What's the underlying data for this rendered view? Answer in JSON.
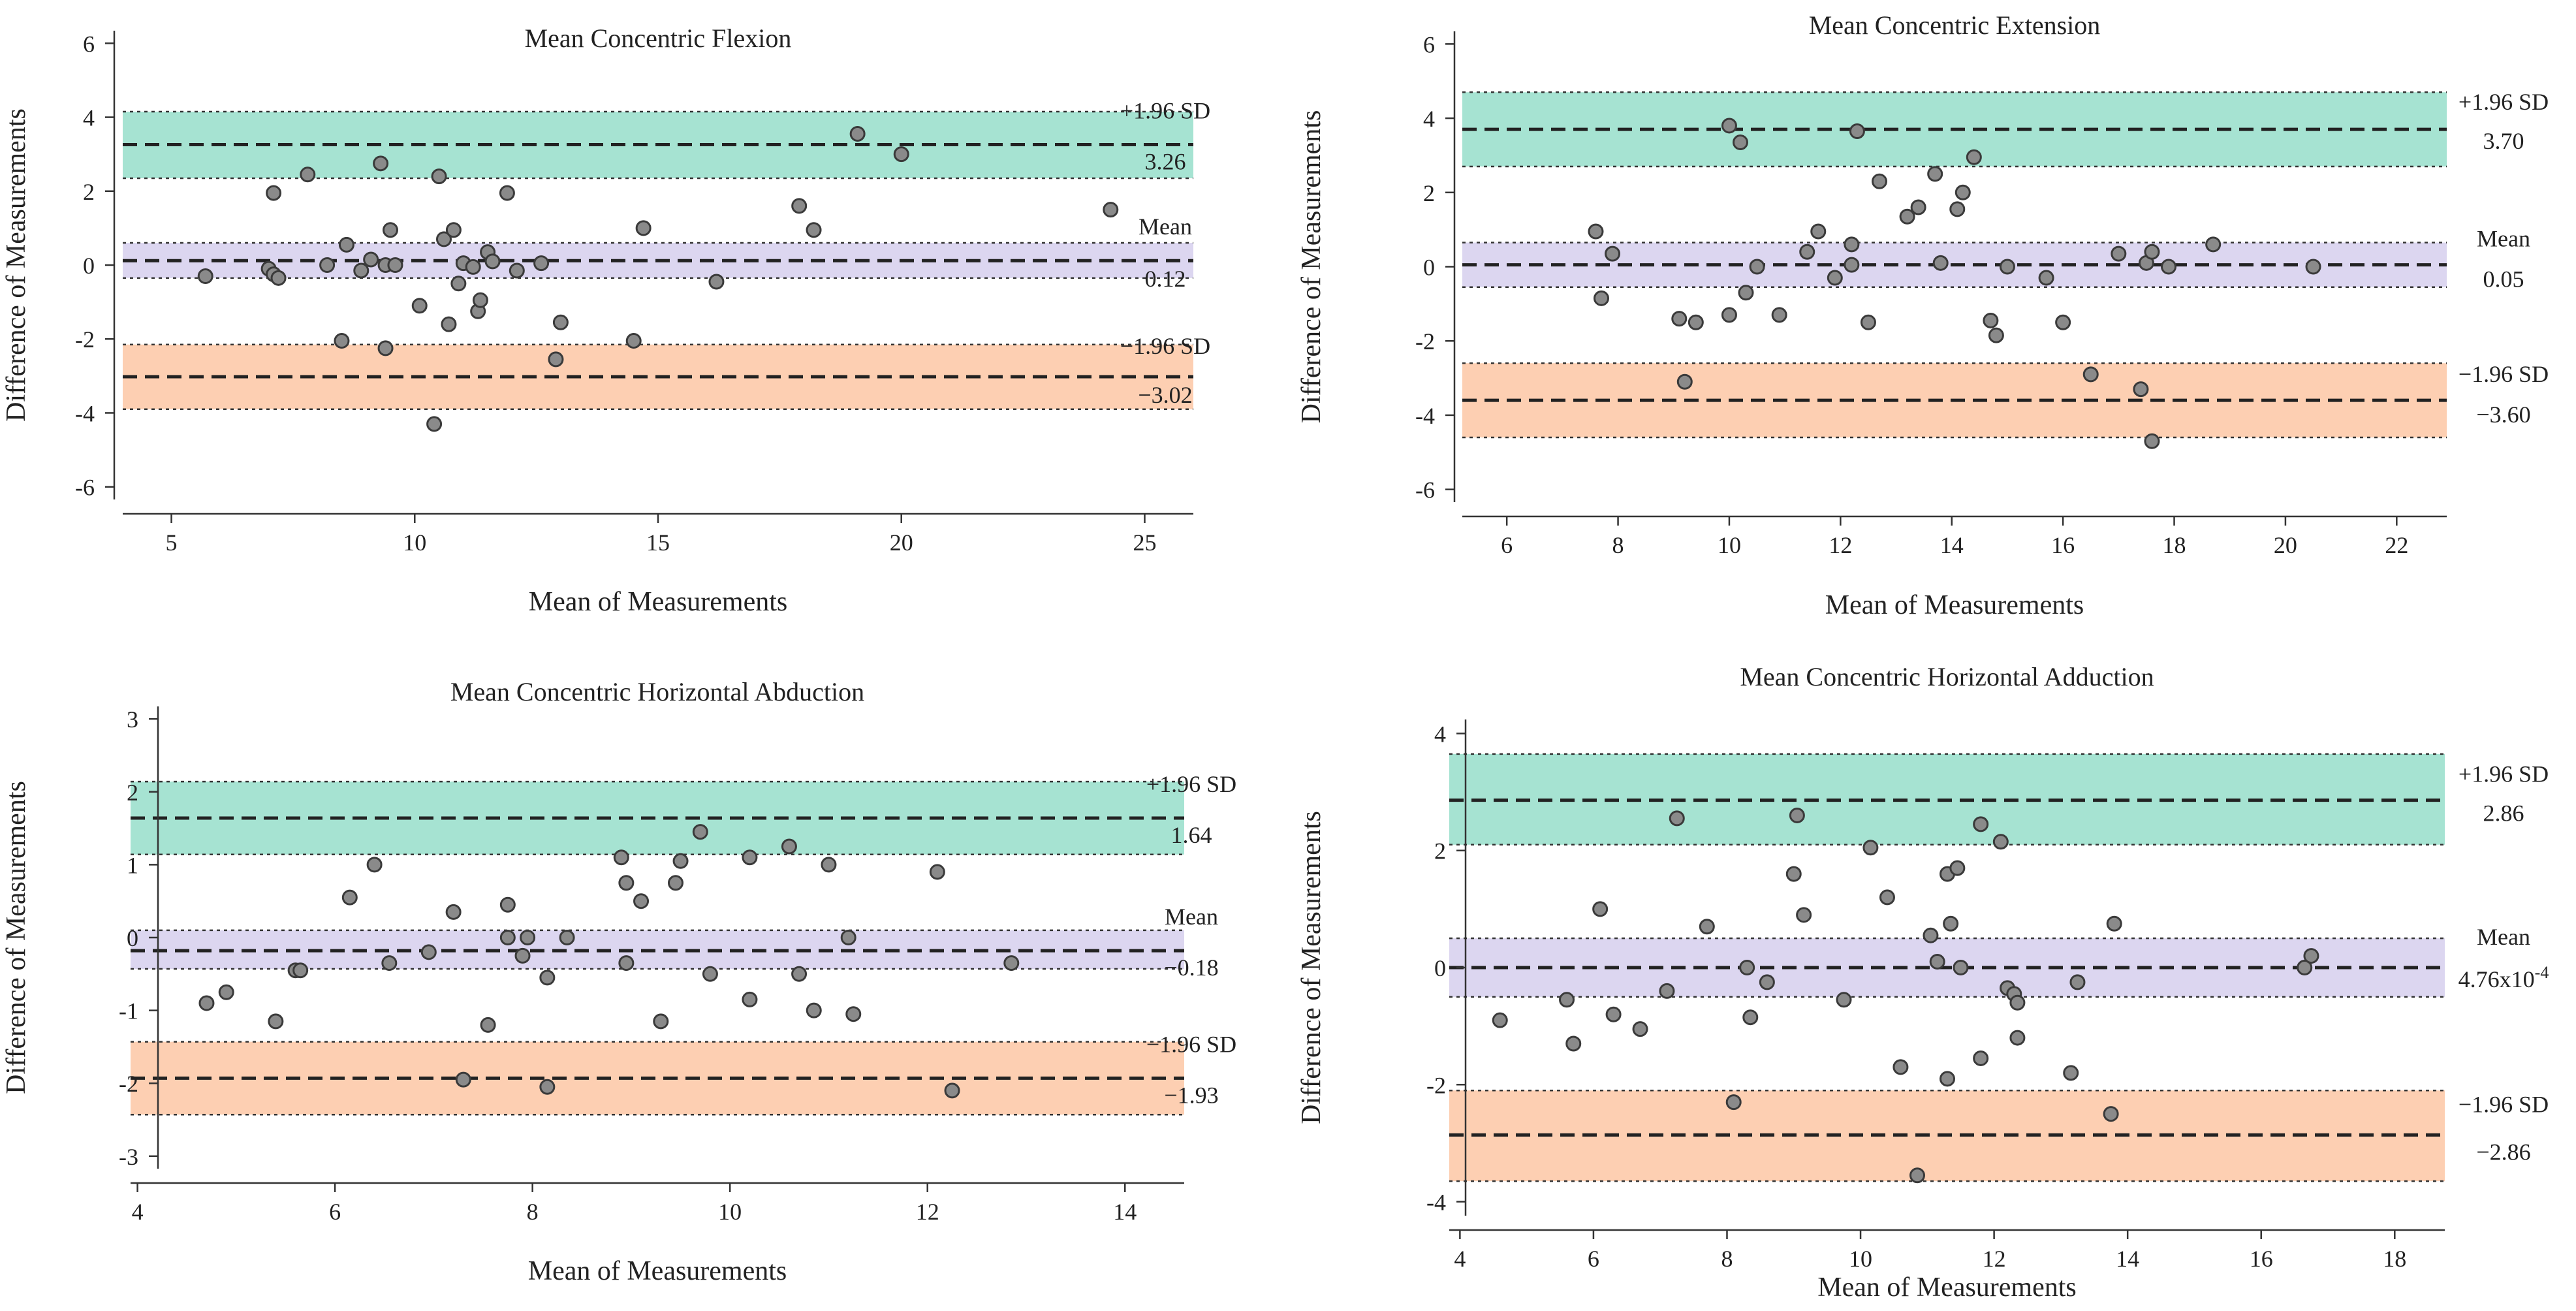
{
  "colors": {
    "upper_band": "#a6e3d2",
    "mean_band": "#dcd6f0",
    "lower_band": "#fdcfb2",
    "point_fill": "#8a8a8a",
    "point_stroke": "#3a3a3a",
    "line": "#222222"
  },
  "chart_data": [
    {
      "type": "scatter",
      "title": "Mean Concentric Flexion",
      "xlabel": "Mean of Measurements",
      "ylabel": "Difference of Measurements",
      "xlim": [
        4,
        26
      ],
      "ylim": [
        -6.2,
        6.2
      ],
      "xticks": [
        5,
        10,
        15,
        20,
        25
      ],
      "yticks": [
        6,
        4,
        2,
        0,
        -2,
        -4,
        -6
      ],
      "limits": {
        "upper": {
          "label": "+1.96 SD",
          "value": 3.26,
          "value_text": "3.26",
          "band": [
            2.35,
            4.15
          ]
        },
        "mean": {
          "label": "Mean",
          "value": 0.12,
          "value_text": "0.12",
          "band": [
            -0.35,
            0.6
          ]
        },
        "lower": {
          "label": "−1.96 SD",
          "value": -3.02,
          "value_text": "−3.02",
          "band": [
            -3.9,
            -2.15
          ]
        }
      },
      "points": [
        [
          5.7,
          -0.3
        ],
        [
          7.0,
          -0.1
        ],
        [
          7.1,
          1.95
        ],
        [
          7.1,
          -0.25
        ],
        [
          7.2,
          -0.35
        ],
        [
          7.8,
          2.45
        ],
        [
          8.2,
          0.0
        ],
        [
          8.5,
          -2.05
        ],
        [
          8.6,
          0.55
        ],
        [
          8.9,
          -0.15
        ],
        [
          9.1,
          0.15
        ],
        [
          9.3,
          2.75
        ],
        [
          9.4,
          0.0
        ],
        [
          9.4,
          -2.25
        ],
        [
          9.5,
          0.95
        ],
        [
          9.6,
          0.0
        ],
        [
          10.1,
          -1.1
        ],
        [
          10.4,
          -4.3
        ],
        [
          10.5,
          2.4
        ],
        [
          10.6,
          0.7
        ],
        [
          10.7,
          -1.6
        ],
        [
          10.8,
          0.95
        ],
        [
          10.9,
          -0.5
        ],
        [
          11.0,
          0.05
        ],
        [
          11.2,
          -0.05
        ],
        [
          11.3,
          -1.25
        ],
        [
          11.35,
          -0.95
        ],
        [
          11.5,
          0.35
        ],
        [
          11.6,
          0.1
        ],
        [
          11.9,
          1.95
        ],
        [
          12.1,
          -0.15
        ],
        [
          12.6,
          0.05
        ],
        [
          12.9,
          -2.55
        ],
        [
          13.0,
          -1.55
        ],
        [
          14.5,
          -2.05
        ],
        [
          14.7,
          1.0
        ],
        [
          16.2,
          -0.45
        ],
        [
          17.9,
          1.6
        ],
        [
          18.2,
          0.95
        ],
        [
          19.1,
          3.55
        ],
        [
          20.0,
          3.0
        ],
        [
          24.3,
          1.5
        ]
      ]
    },
    {
      "type": "scatter",
      "title": "Mean Concentric Extension",
      "xlabel": "Mean of Measurements",
      "ylabel": "Difference of Measurements",
      "xlim": [
        5.2,
        22.9
      ],
      "ylim": [
        -6.2,
        6.2
      ],
      "xticks": [
        6,
        8,
        10,
        12,
        14,
        16,
        18,
        20,
        22
      ],
      "yticks": [
        6,
        4,
        2,
        0,
        -2,
        -4,
        -6
      ],
      "limits": {
        "upper": {
          "label": "+1.96 SD",
          "value": 3.7,
          "value_text": "3.70",
          "band": [
            2.7,
            4.7
          ]
        },
        "mean": {
          "label": "Mean",
          "value": 0.05,
          "value_text": "0.05",
          "band": [
            -0.55,
            0.65
          ]
        },
        "lower": {
          "label": "−1.96 SD",
          "value": -3.6,
          "value_text": "−3.60",
          "band": [
            -4.6,
            -2.6
          ]
        }
      },
      "points": [
        [
          7.6,
          0.95
        ],
        [
          7.7,
          -0.85
        ],
        [
          7.9,
          0.35
        ],
        [
          9.1,
          -1.4
        ],
        [
          9.2,
          -3.1
        ],
        [
          9.4,
          -1.5
        ],
        [
          10.0,
          3.8
        ],
        [
          10.0,
          -1.3
        ],
        [
          10.2,
          3.35
        ],
        [
          10.3,
          -0.7
        ],
        [
          10.5,
          0.0
        ],
        [
          10.9,
          -1.3
        ],
        [
          11.4,
          0.4
        ],
        [
          11.6,
          0.95
        ],
        [
          11.9,
          -0.3
        ],
        [
          12.2,
          0.6
        ],
        [
          12.2,
          0.05
        ],
        [
          12.3,
          3.65
        ],
        [
          12.5,
          -1.5
        ],
        [
          12.7,
          2.3
        ],
        [
          13.2,
          1.35
        ],
        [
          13.4,
          1.6
        ],
        [
          13.7,
          2.5
        ],
        [
          13.8,
          0.1
        ],
        [
          14.1,
          1.55
        ],
        [
          14.2,
          2.0
        ],
        [
          14.4,
          2.95
        ],
        [
          14.7,
          -1.45
        ],
        [
          14.8,
          -1.85
        ],
        [
          15.0,
          0.0
        ],
        [
          15.7,
          -0.3
        ],
        [
          16.0,
          -1.5
        ],
        [
          16.5,
          -2.9
        ],
        [
          17.0,
          0.35
        ],
        [
          17.4,
          -3.3
        ],
        [
          17.5,
          0.1
        ],
        [
          17.6,
          0.4
        ],
        [
          17.6,
          -4.7
        ],
        [
          17.9,
          0.0
        ],
        [
          18.7,
          0.6
        ],
        [
          20.5,
          0.0
        ]
      ]
    },
    {
      "type": "scatter",
      "title": "Mean Concentric Horizontal Abduction",
      "xlabel": "Mean of Measurements",
      "ylabel": "Difference of Measurements",
      "xlim": [
        3.93,
        14.6
      ],
      "ylim": [
        -3.1,
        3.1
      ],
      "xticks": [
        4,
        6,
        8,
        10,
        12,
        14
      ],
      "yticks": [
        3,
        2,
        1,
        0,
        -1,
        -2,
        -3
      ],
      "limits": {
        "upper": {
          "label": "+1.96 SD",
          "value": 1.64,
          "value_text": "1.64",
          "band": [
            1.14,
            2.14
          ]
        },
        "mean": {
          "label": "Mean",
          "value": -0.18,
          "value_text": "−0.18",
          "band": [
            -0.43,
            0.1
          ]
        },
        "lower": {
          "label": "−1.96 SD",
          "value": -1.93,
          "value_text": "−1.93",
          "band": [
            -2.43,
            -1.43
          ]
        }
      },
      "points": [
        [
          4.7,
          -0.9
        ],
        [
          4.9,
          -0.75
        ],
        [
          5.4,
          -1.15
        ],
        [
          5.6,
          -0.45
        ],
        [
          5.65,
          -0.45
        ],
        [
          6.15,
          0.55
        ],
        [
          6.4,
          1.0
        ],
        [
          6.55,
          -0.35
        ],
        [
          6.95,
          -0.2
        ],
        [
          7.2,
          0.35
        ],
        [
          7.3,
          -1.95
        ],
        [
          7.55,
          -1.2
        ],
        [
          7.75,
          0.45
        ],
        [
          7.75,
          0.0
        ],
        [
          7.9,
          -0.25
        ],
        [
          7.95,
          0.0
        ],
        [
          8.15,
          -0.55
        ],
        [
          8.15,
          -2.05
        ],
        [
          8.35,
          0.0
        ],
        [
          8.9,
          1.1
        ],
        [
          8.95,
          -0.35
        ],
        [
          8.95,
          0.75
        ],
        [
          9.1,
          0.5
        ],
        [
          9.3,
          -1.15
        ],
        [
          9.45,
          0.75
        ],
        [
          9.5,
          1.05
        ],
        [
          9.7,
          1.45
        ],
        [
          9.8,
          -0.5
        ],
        [
          10.2,
          1.1
        ],
        [
          10.2,
          -0.85
        ],
        [
          10.6,
          1.25
        ],
        [
          10.7,
          -0.5
        ],
        [
          10.85,
          -1.0
        ],
        [
          11.0,
          1.0
        ],
        [
          11.2,
          0.0
        ],
        [
          11.25,
          -1.05
        ],
        [
          12.1,
          0.9
        ],
        [
          12.25,
          -2.1
        ],
        [
          12.85,
          -0.35
        ]
      ]
    },
    {
      "type": "scatter",
      "title": "Mean Concentric Horizontal Adduction",
      "xlabel": "Mean of Measurements",
      "ylabel": "Difference of Measurements",
      "xlim": [
        3.84,
        18.75
      ],
      "ylim": [
        -4.15,
        4.15
      ],
      "xticks": [
        4,
        6,
        8,
        10,
        12,
        14,
        16,
        18
      ],
      "yticks": [
        4,
        2,
        0,
        -2,
        -4
      ],
      "limits": {
        "upper": {
          "label": "+1.96 SD",
          "value": 2.86,
          "value_text": "2.86",
          "band": [
            2.1,
            3.65
          ]
        },
        "mean": {
          "label": "Mean",
          "value": 0.000476,
          "value_text": "4.76x10",
          "value_exp": "-4",
          "band": [
            -0.5,
            0.5
          ]
        },
        "lower": {
          "label": "−1.96 SD",
          "value": -2.86,
          "value_text": "−2.86",
          "band": [
            -3.65,
            -2.1
          ]
        }
      },
      "points": [
        [
          4.6,
          -0.9
        ],
        [
          5.6,
          -0.55
        ],
        [
          5.7,
          -1.3
        ],
        [
          6.1,
          1.0
        ],
        [
          6.3,
          -0.8
        ],
        [
          6.7,
          -1.05
        ],
        [
          7.1,
          -0.4
        ],
        [
          7.25,
          2.55
        ],
        [
          7.7,
          0.7
        ],
        [
          8.1,
          -2.3
        ],
        [
          8.3,
          0.0
        ],
        [
          8.35,
          -0.85
        ],
        [
          8.6,
          -0.25
        ],
        [
          9.0,
          1.6
        ],
        [
          9.05,
          2.6
        ],
        [
          9.15,
          0.9
        ],
        [
          9.75,
          -0.55
        ],
        [
          10.15,
          2.05
        ],
        [
          10.4,
          1.2
        ],
        [
          10.6,
          -1.7
        ],
        [
          10.85,
          -3.55
        ],
        [
          11.05,
          0.55
        ],
        [
          11.15,
          0.1
        ],
        [
          11.3,
          1.6
        ],
        [
          11.3,
          -1.9
        ],
        [
          11.35,
          0.75
        ],
        [
          11.45,
          1.7
        ],
        [
          11.5,
          0.0
        ],
        [
          11.8,
          -1.55
        ],
        [
          11.8,
          2.45
        ],
        [
          12.1,
          2.15
        ],
        [
          12.2,
          -0.35
        ],
        [
          12.3,
          -0.45
        ],
        [
          12.35,
          -1.2
        ],
        [
          12.35,
          -0.6
        ],
        [
          13.15,
          -1.8
        ],
        [
          13.25,
          -0.25
        ],
        [
          13.75,
          -2.5
        ],
        [
          13.8,
          0.75
        ],
        [
          16.65,
          0.0
        ],
        [
          16.75,
          0.2
        ]
      ]
    }
  ]
}
